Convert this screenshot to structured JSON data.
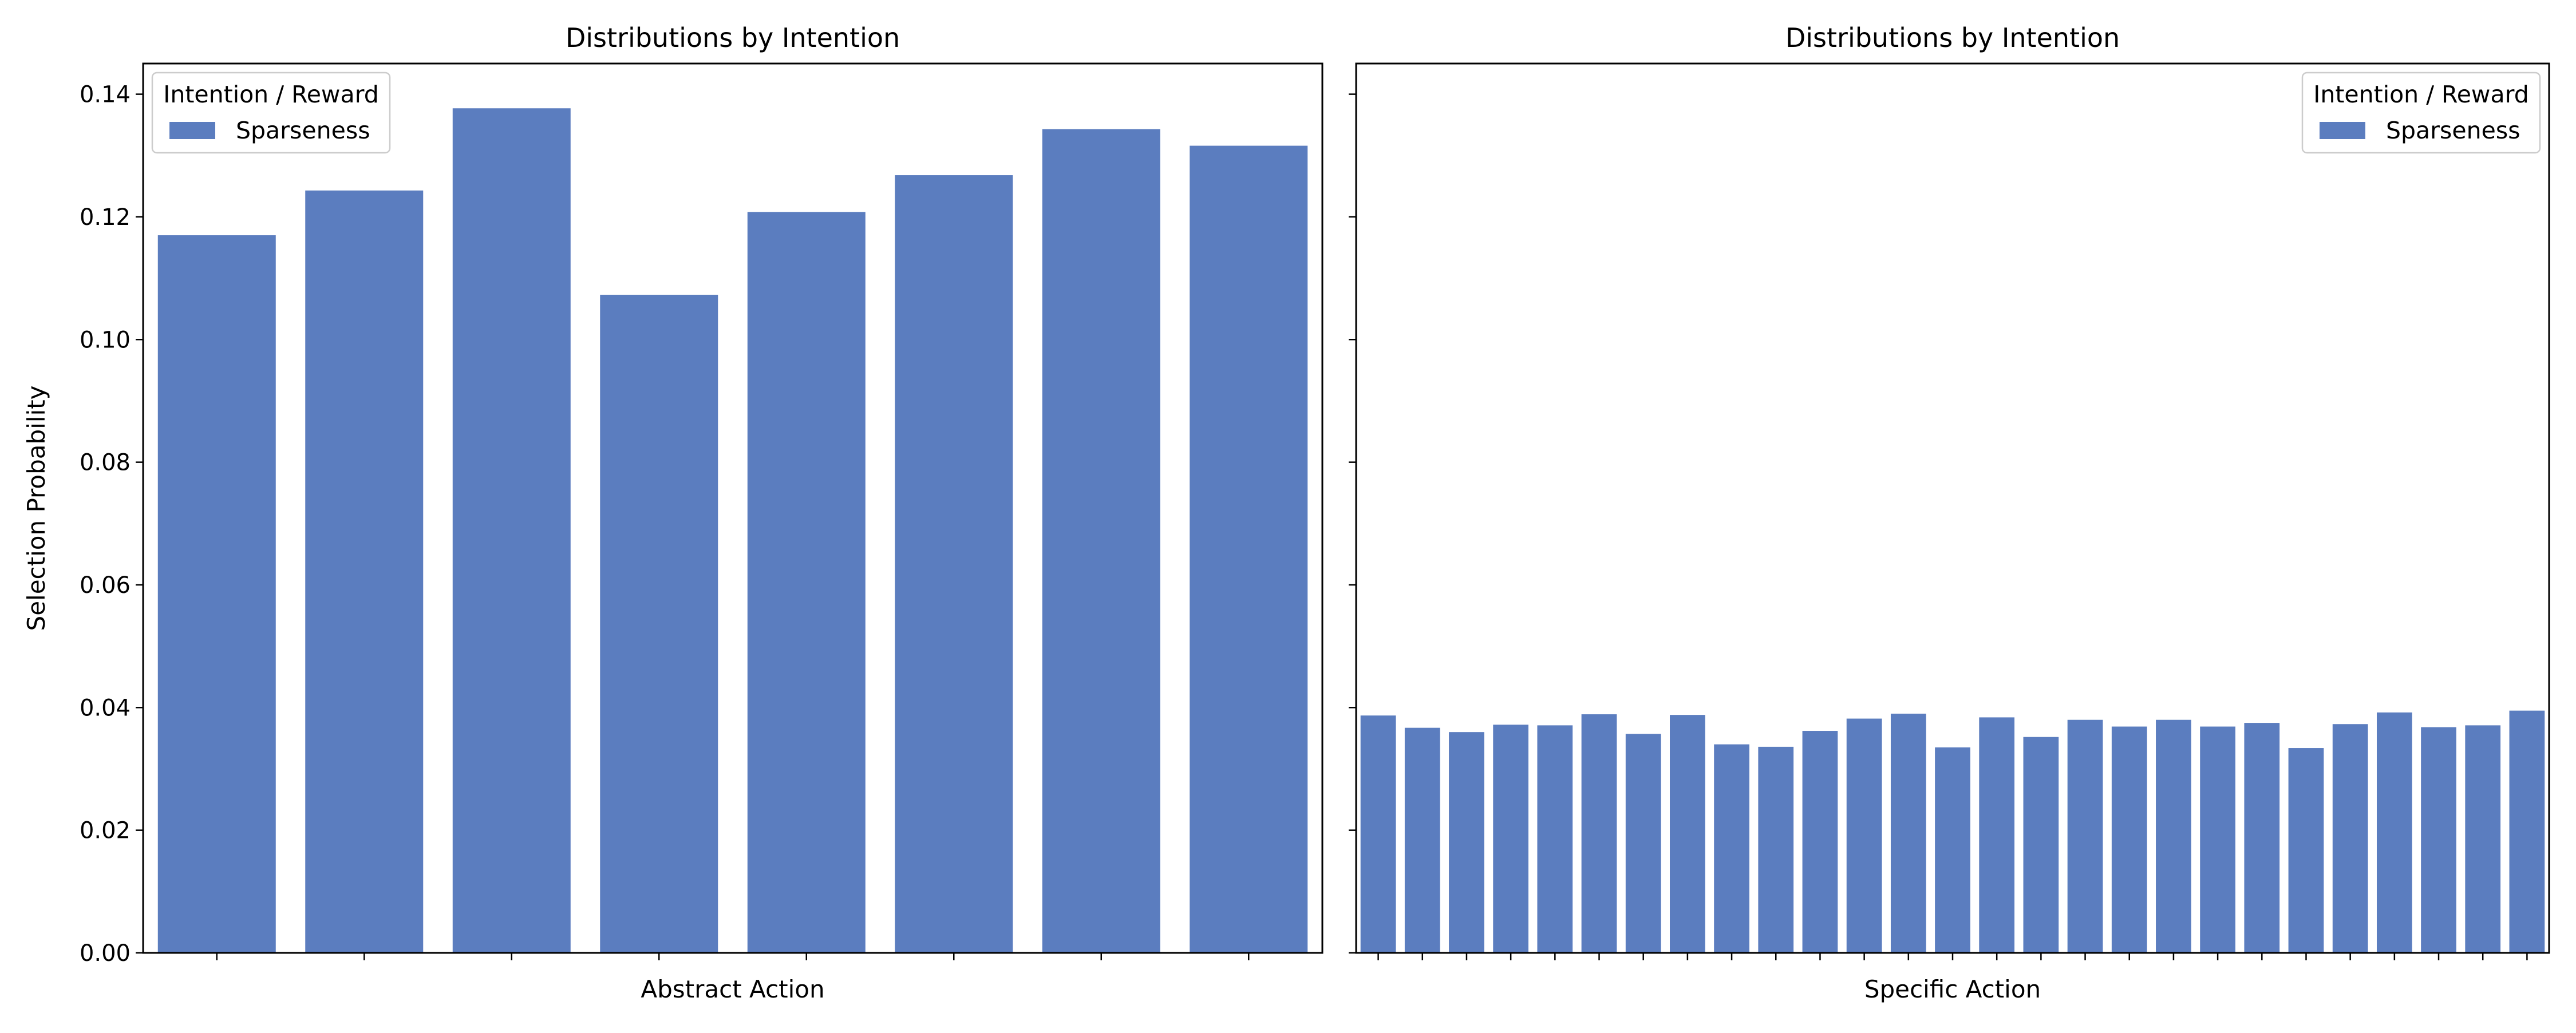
{
  "colors": {
    "bar": "#5B7DBF",
    "axis": "#000000",
    "legend_border": "#cccccc"
  },
  "chart_data": [
    {
      "type": "bar",
      "title": "Distributions by Intention",
      "xlabel": "Abstract Action",
      "ylabel": "Selection Probability",
      "ylim": [
        0,
        0.145
      ],
      "yticks": [
        "0.00",
        "0.02",
        "0.04",
        "0.06",
        "0.08",
        "0.10",
        "0.12",
        "0.14"
      ],
      "show_xtick_labels": false,
      "legend": {
        "title": "Intention / Reward",
        "placement": "top-left"
      },
      "series": [
        {
          "name": "Sparseness",
          "values": [
            0.117,
            0.1243,
            0.1377,
            0.1073,
            0.1208,
            0.1268,
            0.1343,
            0.1316
          ]
        }
      ],
      "grid": false
    },
    {
      "type": "bar",
      "title": "Distributions by Intention",
      "xlabel": "Specific Action",
      "ylabel": "",
      "ylim": [
        0,
        0.145
      ],
      "shared_y": true,
      "show_ytick_labels": false,
      "show_xtick_labels": false,
      "legend": {
        "title": "Intention / Reward",
        "placement": "top-right"
      },
      "series": [
        {
          "name": "Sparseness",
          "values": [
            0.0387,
            0.0367,
            0.036,
            0.0372,
            0.0371,
            0.0389,
            0.0357,
            0.0388,
            0.034,
            0.0336,
            0.0362,
            0.0382,
            0.039,
            0.0335,
            0.0384,
            0.0352,
            0.038,
            0.0369,
            0.038,
            0.0369,
            0.0375,
            0.0334,
            0.0373,
            0.0392,
            0.0368,
            0.0371,
            0.0395
          ]
        }
      ],
      "grid": false
    }
  ]
}
